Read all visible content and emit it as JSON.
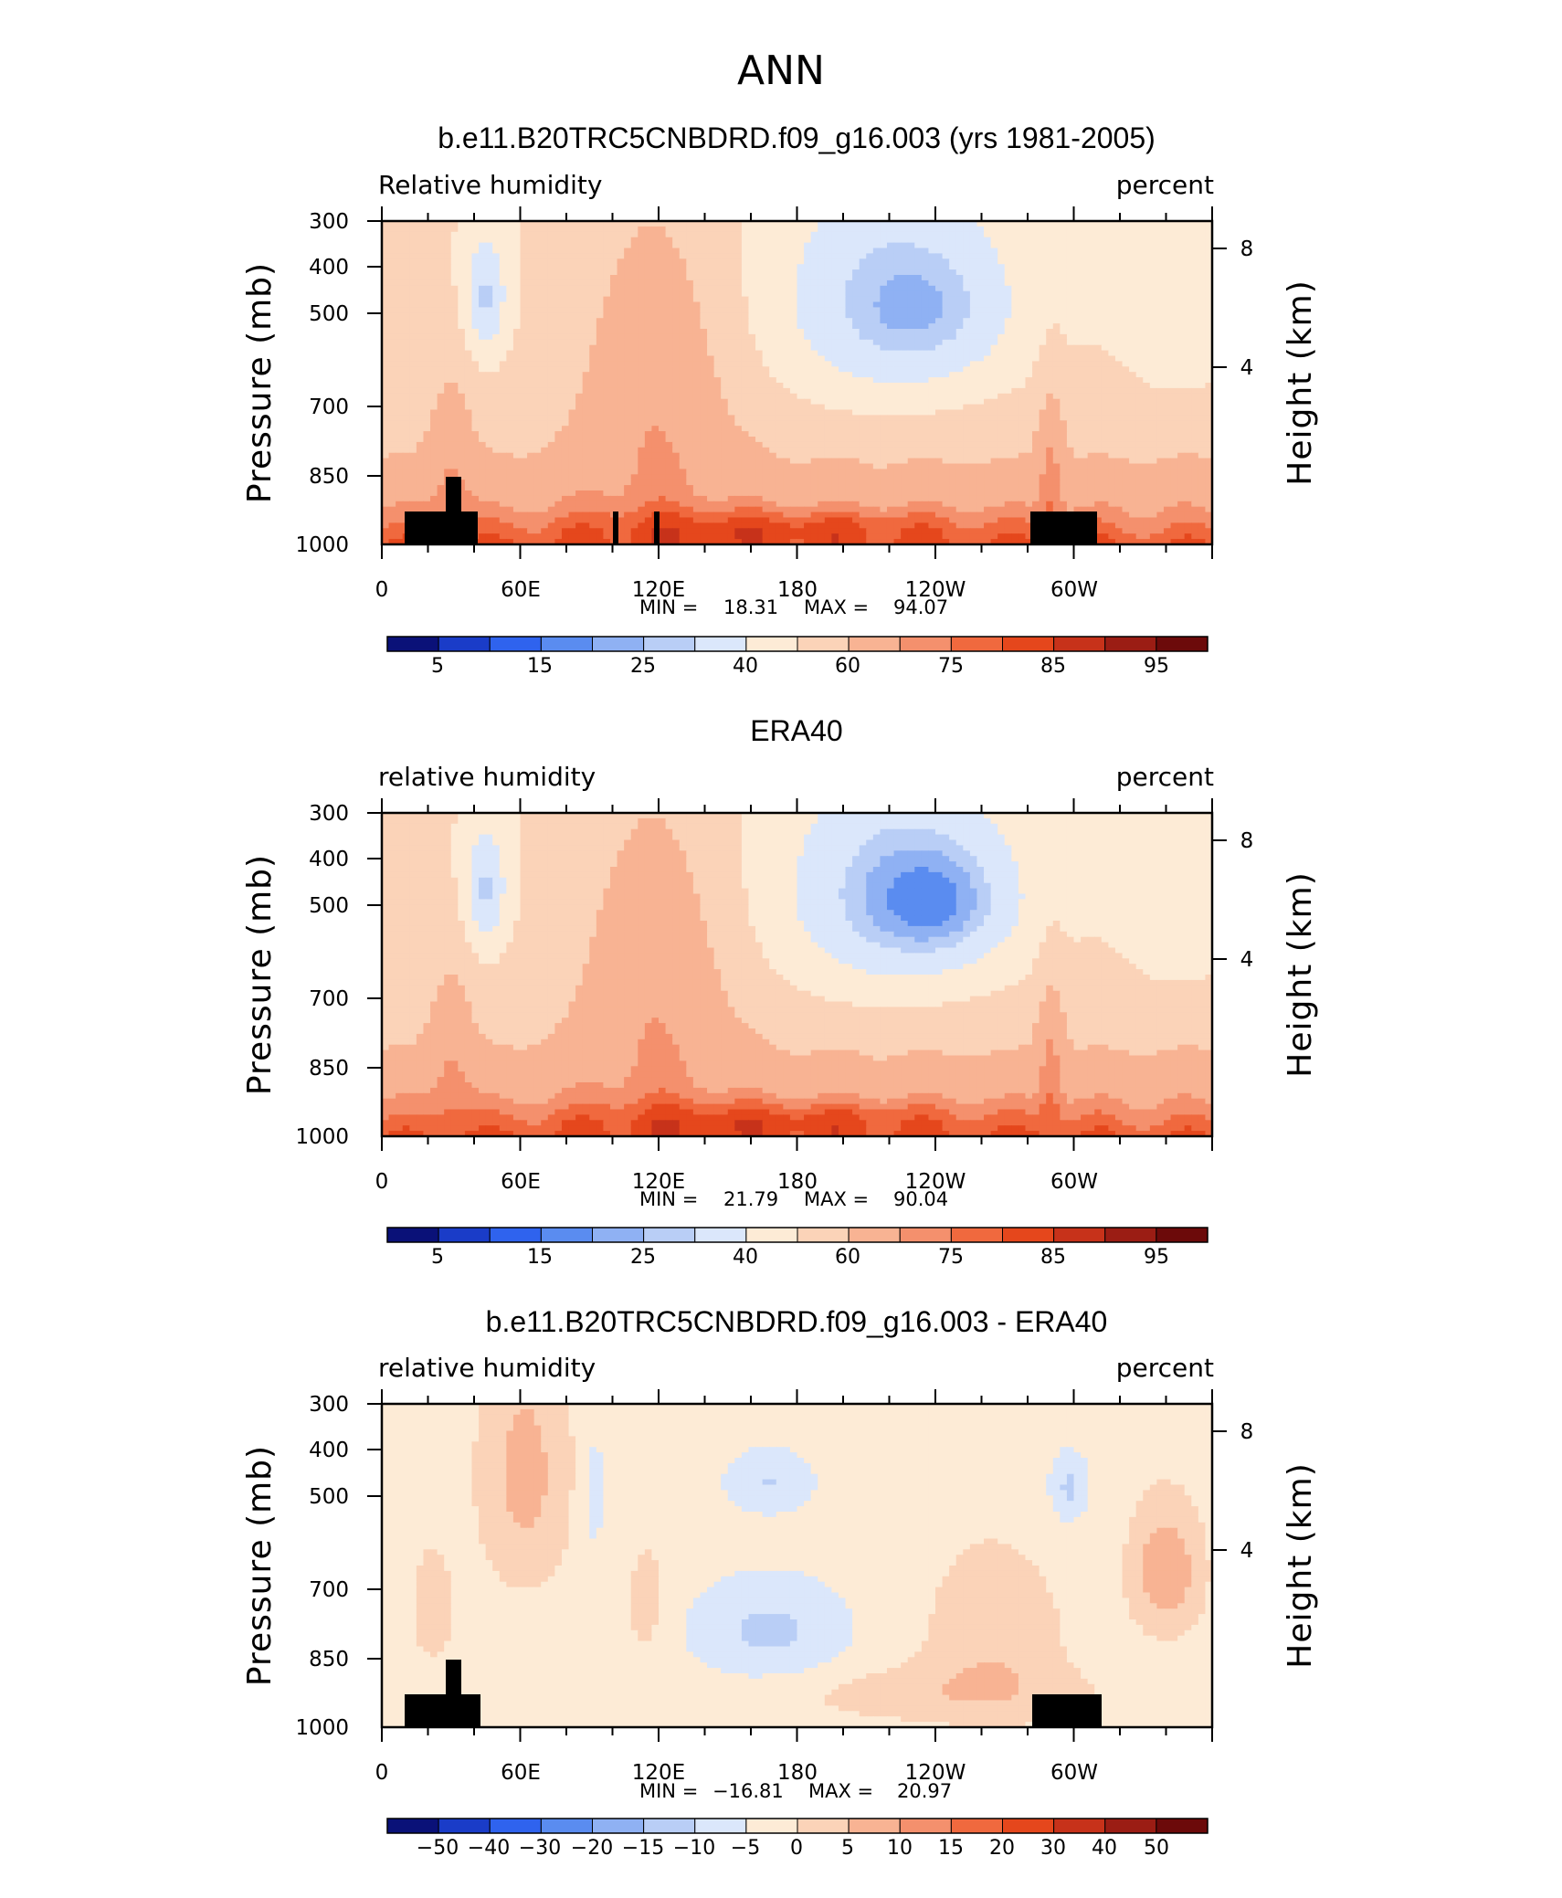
{
  "figure": {
    "suptitle": "ANN"
  },
  "chart_data": [
    {
      "type": "heatmap",
      "title": "b.e11.B20TRC5CNBDRD.f09_g16.003 (yrs 1981-2005)",
      "left_label": "Relative  humidity",
      "right_label": "percent",
      "ylabel": "Pressure  (mb)",
      "ylabel_right": "Height  (km)",
      "x_ticks": [
        "0",
        "60E",
        "120E",
        "180",
        "120W",
        "60W"
      ],
      "x_tick_values": [
        0,
        60,
        120,
        180,
        240,
        300
      ],
      "xlim": [
        0,
        360
      ],
      "y_ticks": [
        "300",
        "400",
        "500",
        "700",
        "850",
        "1000"
      ],
      "y_tick_values": [
        300,
        400,
        500,
        700,
        850,
        1000
      ],
      "ylim": [
        1000,
        300
      ],
      "y_scale": "log-pressure",
      "right_ticks": [
        "8",
        "4"
      ],
      "min_label": "MIN =",
      "min": "18.31",
      "max_label": "MAX =",
      "max": "94.07",
      "colorbar_labels": [
        "5",
        "15",
        "25",
        "40",
        "60",
        "75",
        "85",
        "95"
      ],
      "colorbar_colors": [
        "#0a1178",
        "#1a3cc8",
        "#2f63ee",
        "#5a8cf0",
        "#8fb1f3",
        "#b9cef6",
        "#dbe7fb",
        "#fdebd6",
        "#fbd3b8",
        "#f8b393",
        "#f4906d",
        "#f0693e",
        "#e5471c",
        "#c7321a",
        "#9b1d14",
        "#6c0a0a"
      ],
      "field": "full"
    },
    {
      "type": "heatmap",
      "title": "ERA40",
      "left_label": "relative  humidity",
      "right_label": "percent",
      "ylabel": "Pressure  (mb)",
      "ylabel_right": "Height  (km)",
      "x_ticks": [
        "0",
        "60E",
        "120E",
        "180",
        "120W",
        "60W"
      ],
      "x_tick_values": [
        0,
        60,
        120,
        180,
        240,
        300
      ],
      "xlim": [
        0,
        360
      ],
      "y_ticks": [
        "300",
        "400",
        "500",
        "700",
        "850",
        "1000"
      ],
      "y_tick_values": [
        300,
        400,
        500,
        700,
        850,
        1000
      ],
      "ylim": [
        1000,
        300
      ],
      "y_scale": "log-pressure",
      "right_ticks": [
        "8",
        "4"
      ],
      "min_label": "MIN =",
      "min": "21.79",
      "max_label": "MAX =",
      "max": "90.04",
      "colorbar_labels": [
        "5",
        "15",
        "25",
        "40",
        "60",
        "75",
        "85",
        "95"
      ],
      "colorbar_colors": [
        "#0a1178",
        "#1a3cc8",
        "#2f63ee",
        "#5a8cf0",
        "#8fb1f3",
        "#b9cef6",
        "#dbe7fb",
        "#fdebd6",
        "#fbd3b8",
        "#f8b393",
        "#f4906d",
        "#f0693e",
        "#e5471c",
        "#c7321a",
        "#9b1d14",
        "#6c0a0a"
      ],
      "field": "full"
    },
    {
      "type": "heatmap",
      "title": "b.e11.B20TRC5CNBDRD.f09_g16.003 - ERA40",
      "left_label": "relative  humidity",
      "right_label": "percent",
      "ylabel": "Pressure  (mb)",
      "ylabel_right": "Height  (km)",
      "x_ticks": [
        "0",
        "60E",
        "120E",
        "180",
        "120W",
        "60W"
      ],
      "x_tick_values": [
        0,
        60,
        120,
        180,
        240,
        300
      ],
      "xlim": [
        0,
        360
      ],
      "y_ticks": [
        "300",
        "400",
        "500",
        "700",
        "850",
        "1000"
      ],
      "y_tick_values": [
        300,
        400,
        500,
        700,
        850,
        1000
      ],
      "ylim": [
        1000,
        300
      ],
      "y_scale": "log-pressure",
      "right_ticks": [
        "8",
        "4"
      ],
      "min_label": "MIN =",
      "min": "−16.81",
      "max_label": "MAX =",
      "max": "20.97",
      "colorbar_labels": [
        "−50",
        "−40",
        "−30",
        "−20",
        "−15",
        "−10",
        "−5",
        "0",
        "5",
        "10",
        "15",
        "20",
        "30",
        "40",
        "50"
      ],
      "colorbar_colors": [
        "#0a1178",
        "#1a3cc8",
        "#2f63ee",
        "#5a8cf0",
        "#8fb1f3",
        "#b9cef6",
        "#dbe7fb",
        "#fdebd6",
        "#fbd3b8",
        "#f8b393",
        "#f4906d",
        "#f0693e",
        "#e5471c",
        "#c7321a",
        "#9b1d14",
        "#6c0a0a"
      ],
      "field": "diff"
    }
  ]
}
